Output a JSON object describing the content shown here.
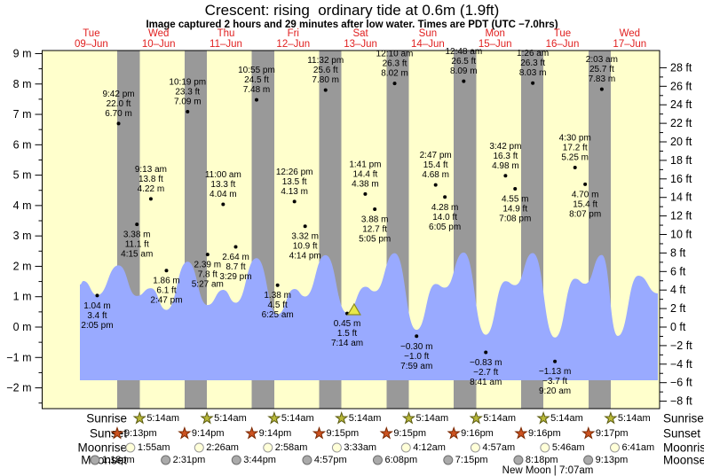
{
  "header": {
    "title": "Crescent: rising  ordinary tide at 0.6m (1.9ft)",
    "subtitle": "Image captured 2 hours and 29 minutes after low water. Times are PDT (UTC −7.0hrs)"
  },
  "chart_data": {
    "type": "area",
    "title": "Crescent: rising  ordinary tide at 0.6m (1.9ft)",
    "ylabel_left": "meters",
    "ylabel_right": "feet",
    "ylim_left": [
      -2.7,
      9.1
    ],
    "grid": false,
    "y_axis_left": {
      "values": [
        9,
        8,
        7,
        6,
        5,
        4,
        3,
        2,
        1,
        0,
        -1,
        -2
      ],
      "labels": [
        "9 m",
        "8 m",
        "7 m",
        "6 m",
        "5 m",
        "4 m",
        "3 m",
        "2 m",
        "1 m",
        "0 m",
        "−1 m",
        "−2 m"
      ]
    },
    "y_axis_right": {
      "values": [
        28,
        26,
        24,
        22,
        20,
        18,
        16,
        14,
        12,
        10,
        8,
        6,
        4,
        2,
        0,
        -2,
        -4,
        -6,
        -8
      ],
      "labels": [
        "28 ft",
        "26 ft",
        "24 ft",
        "22 ft",
        "20 ft",
        "18 ft",
        "16 ft",
        "14 ft",
        "12 ft",
        "10 ft",
        "8 ft",
        "6 ft",
        "4 ft",
        "2 ft",
        "0 ft",
        "−2 ft",
        "−4 ft",
        "−6 ft",
        "−8 ft"
      ]
    },
    "days": [
      {
        "dow": "Tue",
        "date": "09–Jun"
      },
      {
        "dow": "Wed",
        "date": "10–Jun"
      },
      {
        "dow": "Thu",
        "date": "11–Jun"
      },
      {
        "dow": "Fri",
        "date": "12–Jun"
      },
      {
        "dow": "Sat",
        "date": "13–Jun"
      },
      {
        "dow": "Sun",
        "date": "14–Jun"
      },
      {
        "dow": "Mon",
        "date": "15–Jun"
      },
      {
        "dow": "Tue",
        "date": "16–Jun"
      },
      {
        "dow": "Wed",
        "date": "17–Jun"
      }
    ],
    "tide_events": [
      {
        "day": 0,
        "type": "low",
        "time": "2:05 pm",
        "hour": 14.083,
        "meters": 1.04,
        "feet": 3.4,
        "m_label": "1.04 m",
        "ft_label": "3.4 ft"
      },
      {
        "day": 0,
        "type": "high",
        "time": "9:42 pm",
        "hour": 21.7,
        "meters": 6.7,
        "feet": 22.0,
        "m_label": "6.70 m",
        "ft_label": "22.0 ft"
      },
      {
        "day": 1,
        "type": "low",
        "time": "4:15 am",
        "hour": 4.25,
        "meters": 3.38,
        "feet": 11.1,
        "m_label": "3.38 m",
        "ft_label": "11.1 ft"
      },
      {
        "day": 1,
        "type": "high",
        "time": "9:13 am",
        "hour": 9.217,
        "meters": 4.22,
        "feet": 13.8,
        "m_label": "4.22 m",
        "ft_label": "13.8 ft"
      },
      {
        "day": 1,
        "type": "low",
        "time": "2:47 pm",
        "hour": 14.783,
        "meters": 1.86,
        "feet": 6.1,
        "m_label": "1.86 m",
        "ft_label": "6.1 ft"
      },
      {
        "day": 1,
        "type": "high",
        "time": "10:19 pm",
        "hour": 22.317,
        "meters": 7.09,
        "feet": 23.3,
        "m_label": "7.09 m",
        "ft_label": "23.3 ft"
      },
      {
        "day": 2,
        "type": "low",
        "time": "5:27 am",
        "hour": 5.45,
        "meters": 2.39,
        "feet": 7.8,
        "m_label": "2.39 m",
        "ft_label": "7.8 ft"
      },
      {
        "day": 2,
        "type": "high",
        "time": "11:00 am",
        "hour": 11.0,
        "meters": 4.04,
        "feet": 13.3,
        "m_label": "4.04 m",
        "ft_label": "13.3 ft"
      },
      {
        "day": 2,
        "type": "low",
        "time": "3:29 pm",
        "hour": 15.483,
        "meters": 2.64,
        "feet": 8.7,
        "m_label": "2.64 m",
        "ft_label": "8.7 ft"
      },
      {
        "day": 2,
        "type": "high",
        "time": "10:55 pm",
        "hour": 22.917,
        "meters": 7.48,
        "feet": 24.5,
        "m_label": "7.48 m",
        "ft_label": "24.5 ft"
      },
      {
        "day": 3,
        "type": "low",
        "time": "6:25 am",
        "hour": 6.417,
        "meters": 1.38,
        "feet": 4.5,
        "m_label": "1.38 m",
        "ft_label": "4.5 ft"
      },
      {
        "day": 3,
        "type": "high",
        "time": "12:26 pm",
        "hour": 12.433,
        "meters": 4.13,
        "feet": 13.5,
        "m_label": "4.13 m",
        "ft_label": "13.5 ft"
      },
      {
        "day": 3,
        "type": "low",
        "time": "4:14 pm",
        "hour": 16.233,
        "meters": 3.32,
        "feet": 10.9,
        "m_label": "3.32 m",
        "ft_label": "10.9 ft"
      },
      {
        "day": 3,
        "type": "high",
        "time": "11:32 pm",
        "hour": 23.533,
        "meters": 7.8,
        "feet": 25.6,
        "m_label": "7.80 m",
        "ft_label": "25.6 ft"
      },
      {
        "day": 4,
        "type": "low",
        "time": "7:14 am",
        "hour": 7.233,
        "meters": 0.45,
        "feet": 1.5,
        "m_label": "0.45 m",
        "ft_label": "1.5 ft"
      },
      {
        "day": 4,
        "type": "high",
        "time": "1:41 pm",
        "hour": 13.683,
        "meters": 4.38,
        "feet": 14.4,
        "m_label": "4.38 m",
        "ft_label": "14.4 ft"
      },
      {
        "day": 4,
        "type": "low",
        "time": "5:05 pm",
        "hour": 17.083,
        "meters": 3.88,
        "feet": 12.7,
        "m_label": "3.88 m",
        "ft_label": "12.7 ft"
      },
      {
        "day": 5,
        "type": "high",
        "time": "12:10 am",
        "hour": 0.167,
        "meters": 8.02,
        "feet": 26.3,
        "m_label": "8.02 m",
        "ft_label": "26.3 ft"
      },
      {
        "day": 5,
        "type": "low",
        "time": "7:59 am",
        "hour": 7.983,
        "meters": -0.3,
        "feet": -1.0,
        "m_label": "−0.30 m",
        "ft_label": "−1.0 ft"
      },
      {
        "day": 5,
        "type": "high",
        "time": "2:47 pm",
        "hour": 14.783,
        "meters": 4.68,
        "feet": 15.4,
        "m_label": "4.68 m",
        "ft_label": "15.4 ft"
      },
      {
        "day": 5,
        "type": "low",
        "time": "6:05 pm",
        "hour": 18.083,
        "meters": 4.28,
        "feet": 14.0,
        "m_label": "4.28 m",
        "ft_label": "14.0 ft"
      },
      {
        "day": 6,
        "type": "high",
        "time": "12:48 am",
        "hour": 0.8,
        "meters": 8.09,
        "feet": 26.5,
        "m_label": "8.09 m",
        "ft_label": "26.5 ft"
      },
      {
        "day": 6,
        "type": "low",
        "time": "8:41 am",
        "hour": 8.683,
        "meters": -0.83,
        "feet": -2.7,
        "m_label": "−0.83 m",
        "ft_label": "−2.7 ft"
      },
      {
        "day": 6,
        "type": "high",
        "time": "3:42 pm",
        "hour": 15.7,
        "meters": 4.98,
        "feet": 16.3,
        "m_label": "4.98 m",
        "ft_label": "16.3 ft"
      },
      {
        "day": 6,
        "type": "low",
        "time": "7:08 pm",
        "hour": 19.133,
        "meters": 4.55,
        "feet": 14.9,
        "m_label": "4.55 m",
        "ft_label": "14.9 ft"
      },
      {
        "day": 7,
        "type": "high",
        "time": "1:26 am",
        "hour": 1.433,
        "meters": 8.03,
        "feet": 26.3,
        "m_label": "8.03 m",
        "ft_label": "26.3 ft"
      },
      {
        "day": 7,
        "type": "low",
        "time": "9:20 am",
        "hour": 9.333,
        "meters": -1.13,
        "feet": -3.7,
        "m_label": "−1.13 m",
        "ft_label": "−3.7 ft"
      },
      {
        "day": 7,
        "type": "high",
        "time": "4:30 pm",
        "hour": 16.5,
        "meters": 5.25,
        "feet": 17.2,
        "m_label": "5.25 m",
        "ft_label": "17.2 ft"
      },
      {
        "day": 7,
        "type": "low",
        "time": "8:07 pm",
        "hour": 20.117,
        "meters": 4.7,
        "feet": 15.4,
        "m_label": "4.70 m",
        "ft_label": "15.4 ft"
      },
      {
        "day": 8,
        "type": "high",
        "time": "2:03 am",
        "hour": 2.05,
        "meters": 7.83,
        "feet": 25.7,
        "m_label": "7.83 m",
        "ft_label": "25.7 ft"
      }
    ],
    "current_marker": {
      "day": 4,
      "hour": 9.72,
      "meters": 0.6,
      "feet": 1.9
    },
    "colors": {
      "day_bg": "#ffffcc",
      "night_band": "#999999",
      "water": "#99aaff",
      "day_label": "#e02020",
      "marker_fill": "#e8e84a",
      "marker_stroke": "#8a8a20",
      "sunrise_fill": "#b8b838",
      "sunrise_stroke": "#5a5a10",
      "sunset_fill": "#cc5220",
      "sunset_stroke": "#7a2800",
      "moonrise_fill": "#ffffd8",
      "moonrise_stroke": "#999999",
      "moonset_fill": "#aaaaaa",
      "moonset_stroke": "#6e6e6e"
    }
  },
  "astro": {
    "rows": [
      {
        "label": "Sunrise",
        "icon": "sunrise-star-icon",
        "entries": [
          {
            "day": 1,
            "hour": 5.233,
            "time": "5:14am"
          },
          {
            "day": 2,
            "hour": 5.233,
            "time": "5:14am"
          },
          {
            "day": 3,
            "hour": 5.233,
            "time": "5:14am"
          },
          {
            "day": 4,
            "hour": 5.233,
            "time": "5:14am"
          },
          {
            "day": 5,
            "hour": 5.233,
            "time": "5:14am"
          },
          {
            "day": 6,
            "hour": 5.233,
            "time": "5:14am"
          },
          {
            "day": 7,
            "hour": 5.233,
            "time": "5:14am"
          },
          {
            "day": 8,
            "hour": 5.233,
            "time": "5:14am"
          }
        ]
      },
      {
        "label": "Sunset",
        "icon": "sunset-star-icon",
        "entries": [
          {
            "day": 0,
            "hour": 21.217,
            "time": "9:13pm"
          },
          {
            "day": 1,
            "hour": 21.233,
            "time": "9:14pm"
          },
          {
            "day": 2,
            "hour": 21.233,
            "time": "9:14pm"
          },
          {
            "day": 3,
            "hour": 21.25,
            "time": "9:15pm"
          },
          {
            "day": 4,
            "hour": 21.25,
            "time": "9:15pm"
          },
          {
            "day": 5,
            "hour": 21.267,
            "time": "9:16pm"
          },
          {
            "day": 6,
            "hour": 21.267,
            "time": "9:16pm"
          },
          {
            "day": 7,
            "hour": 21.283,
            "time": "9:17pm"
          }
        ]
      },
      {
        "label": "Moonrise",
        "icon": "moonrise-circle-icon",
        "entries": [
          {
            "day": 1,
            "hour": 1.917,
            "time": "1:55am"
          },
          {
            "day": 2,
            "hour": 2.433,
            "time": "2:26am"
          },
          {
            "day": 3,
            "hour": 2.967,
            "time": "2:58am"
          },
          {
            "day": 4,
            "hour": 3.55,
            "time": "3:33am"
          },
          {
            "day": 5,
            "hour": 4.2,
            "time": "4:12am"
          },
          {
            "day": 6,
            "hour": 4.95,
            "time": "4:57am"
          },
          {
            "day": 7,
            "hour": 5.767,
            "time": "5:46am"
          },
          {
            "day": 8,
            "hour": 6.683,
            "time": "6:41am"
          }
        ]
      },
      {
        "label": "Moonset",
        "icon": "moonset-circle-icon",
        "entries": [
          {
            "day": 0,
            "hour": 13.3,
            "time": "1:18pm"
          },
          {
            "day": 1,
            "hour": 14.517,
            "time": "2:31pm"
          },
          {
            "day": 2,
            "hour": 15.733,
            "time": "3:44pm"
          },
          {
            "day": 3,
            "hour": 16.95,
            "time": "4:57pm"
          },
          {
            "day": 4,
            "hour": 18.133,
            "time": "6:08pm"
          },
          {
            "day": 5,
            "hour": 19.25,
            "time": "7:15pm"
          },
          {
            "day": 6,
            "hour": 20.3,
            "time": "8:18pm"
          },
          {
            "day": 7,
            "hour": 21.217,
            "time": "9:13pm"
          }
        ]
      }
    ],
    "footnote": "New Moon | 7:07am"
  }
}
